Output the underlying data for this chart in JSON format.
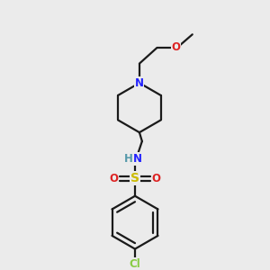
{
  "background_color": "#ebebeb",
  "line_color": "#1a1a1a",
  "atom_colors": {
    "N_blue": "#2222ff",
    "N_teal": "#5599aa",
    "O": "#dd2222",
    "Cl": "#88cc44",
    "S": "#ccbb00",
    "H": "#5599aa"
  },
  "figsize": [
    3.0,
    3.0
  ],
  "dpi": 100,
  "lw": 1.6,
  "benz_r": 30,
  "pip_r": 28
}
